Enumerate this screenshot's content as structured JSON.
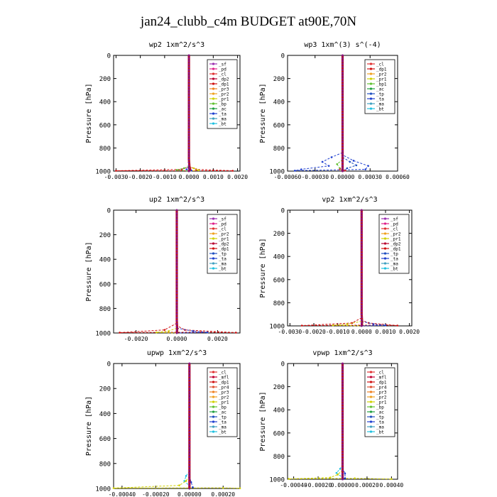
{
  "figure": {
    "title": "jan24_clubb_c4m  BUDGET at90E,70N"
  },
  "chart_data": [
    {
      "type": "line",
      "title": "wp2  1xm^2/s^3",
      "ylabel": "Pressure [hPa]",
      "ylim": [
        1000,
        0
      ],
      "yticks": [
        0,
        200,
        400,
        600,
        800,
        1000
      ],
      "xlim": [
        -0.0031,
        0.0021
      ],
      "xticks": [
        "-0.0030",
        "-0.0020",
        "-0.0010",
        "0.0000",
        "0.0010",
        "0.0020"
      ],
      "xtick_values": [
        -0.003,
        -0.002,
        -0.001,
        0,
        0.001,
        0.002
      ],
      "legend_position": "top-right",
      "legend": [
        "_sf",
        "_pd",
        "_cl",
        "_dp2",
        "_dp1",
        "_pr3",
        "_pr2",
        "_pr1",
        "_bp",
        "_ac",
        "_ta",
        "_ma",
        "_bt"
      ],
      "profile": [
        [
          0,
          0
        ],
        [
          0,
          900
        ],
        [
          2e-05,
          960
        ],
        [
          5e-05,
          985
        ],
        [
          0,
          1000
        ]
      ],
      "series": [
        {
          "name": "_dp1",
          "values": [
            [
              0,
              0
            ],
            [
              0,
              960
            ],
            [
              -0.0003,
              985
            ],
            [
              -0.003,
              997
            ],
            [
              0.0018,
              997
            ],
            [
              0.0003,
              985
            ],
            [
              0,
              960
            ]
          ]
        },
        {
          "name": "_pr1",
          "values": [
            [
              0,
              960
            ],
            [
              0.0002,
              975
            ],
            [
              0.0004,
              992
            ],
            [
              0,
              1000
            ]
          ]
        },
        {
          "name": "_bp",
          "values": [
            [
              0,
              960
            ],
            [
              -0.0002,
              975
            ],
            [
              -0.0005,
              990
            ],
            [
              0,
              1000
            ]
          ]
        },
        {
          "name": "_ta",
          "values": [
            [
              0,
              960
            ],
            [
              -0.0001,
              985
            ],
            [
              0.0001,
              995
            ],
            [
              0,
              1000
            ]
          ]
        }
      ]
    },
    {
      "type": "line",
      "title": "wp3  1xm^(3) s^(-4)",
      "ylabel": "Pressure [hPa]",
      "ylim": [
        1000,
        0
      ],
      "yticks": [
        0,
        200,
        400,
        600,
        800,
        1000
      ],
      "xlim": [
        -0.0006,
        0.0006
      ],
      "xticks": [
        "-0.00060",
        "-0.00030",
        "0.00000",
        "0.00030",
        "0.00060"
      ],
      "xtick_values": [
        -0.0006,
        -0.0003,
        0,
        0.0003,
        0.0006
      ],
      "legend_position": "top-right",
      "legend": [
        "_cl",
        "_dp1",
        "_pr2",
        "_pr1",
        "_bp1",
        "_ac",
        "_tp",
        "_ta",
        "_ma",
        "_bt"
      ],
      "profile": [
        [
          0,
          0
        ],
        [
          0,
          850
        ],
        [
          0,
          1000
        ]
      ],
      "series": [
        {
          "name": "_ta",
          "values": [
            [
              0,
              840
            ],
            [
              -0.00012,
              880
            ],
            [
              -0.00022,
              920
            ],
            [
              -0.00015,
              955
            ],
            [
              -0.00045,
              985
            ],
            [
              -0.00052,
              996
            ],
            [
              0.00025,
              985
            ],
            [
              0.00028,
              955
            ],
            [
              0.00012,
              910
            ],
            [
              0,
              860
            ]
          ]
        },
        {
          "name": "_tp",
          "values": [
            [
              0,
              880
            ],
            [
              8e-05,
              920
            ],
            [
              0.00015,
              950
            ],
            [
              5e-05,
              975
            ],
            [
              0,
              1000
            ]
          ]
        },
        {
          "name": "_bp1",
          "values": [
            [
              0,
              900
            ],
            [
              -6e-05,
              940
            ],
            [
              -3e-05,
              975
            ],
            [
              0,
              1000
            ]
          ]
        },
        {
          "name": "_cl",
          "values": [
            [
              0,
              0
            ],
            [
              0,
              960
            ],
            [
              -3e-05,
              985
            ],
            [
              3e-05,
              995
            ],
            [
              0,
              1000
            ]
          ]
        }
      ]
    },
    {
      "type": "line",
      "title": "up2  1xm^2/s^3",
      "ylabel": "Pressure [hPa]",
      "ylim": [
        1000,
        0
      ],
      "yticks": [
        0,
        200,
        400,
        600,
        800,
        1000
      ],
      "xlim": [
        -0.0031,
        0.0031
      ],
      "xticks": [
        "-0.0020",
        "0.0000",
        "0.0020"
      ],
      "xtick_values": [
        -0.002,
        0,
        0.002
      ],
      "legend_position": "top-right",
      "legend": [
        "_sf",
        "_pd",
        "_cl",
        "_pr2",
        "_pr1",
        "_dp2",
        "_dp1",
        "_tp",
        "_ta",
        "_ma",
        "_bt"
      ],
      "profile": [
        [
          0,
          0
        ],
        [
          0,
          900
        ],
        [
          2e-05,
          970
        ],
        [
          0,
          1000
        ]
      ],
      "series": [
        {
          "name": "_dp1",
          "values": [
            [
              0,
              920
            ],
            [
              -0.0006,
              975
            ],
            [
              -0.0028,
              997
            ],
            [
              0.0012,
              993
            ],
            [
              0.0029,
              997
            ],
            [
              0.0004,
              975
            ],
            [
              0,
              940
            ]
          ]
        },
        {
          "name": "_ta",
          "values": [
            [
              0,
              960
            ],
            [
              0.0008,
              985
            ],
            [
              0.0015,
              995
            ],
            [
              0,
              1000
            ]
          ]
        },
        {
          "name": "_pr1",
          "values": [
            [
              0,
              960
            ],
            [
              -0.0004,
              985
            ],
            [
              -0.001,
              995
            ],
            [
              0,
              1000
            ]
          ]
        }
      ]
    },
    {
      "type": "line",
      "title": "vp2  1xm^2/s^3",
      "ylabel": "Pressure [hPa]",
      "ylim": [
        1000,
        0
      ],
      "yticks": [
        0,
        200,
        400,
        600,
        800,
        1000
      ],
      "xlim": [
        -0.0031,
        0.0021
      ],
      "xticks": [
        "-0.0030",
        "-0.0020",
        "-0.0010",
        "0.0000",
        "0.0010",
        "0.0020"
      ],
      "xtick_values": [
        -0.003,
        -0.002,
        -0.001,
        0,
        0.001,
        0.002
      ],
      "legend_position": "top-right",
      "legend": [
        "_sf",
        "_pd",
        "_cl",
        "_pr2",
        "_pr1",
        "_dp2",
        "_dp1",
        "_tp",
        "_ta",
        "_ma",
        "_bt"
      ],
      "profile": [
        [
          0,
          0
        ],
        [
          0,
          900
        ],
        [
          2e-05,
          970
        ],
        [
          0,
          1000
        ]
      ],
      "series": [
        {
          "name": "_dp1",
          "values": [
            [
              0,
              930
            ],
            [
              -0.0004,
              975
            ],
            [
              -0.0025,
              997
            ],
            [
              0.0008,
              993
            ],
            [
              0.0015,
              997
            ],
            [
              0.0003,
              975
            ],
            [
              0,
              950
            ]
          ]
        },
        {
          "name": "_ta",
          "values": [
            [
              0,
              960
            ],
            [
              0.0005,
              985
            ],
            [
              0.001,
              995
            ],
            [
              0,
              1000
            ]
          ]
        },
        {
          "name": "_pr1",
          "values": [
            [
              0,
              960
            ],
            [
              -0.0006,
              985
            ],
            [
              -0.0012,
              995
            ],
            [
              0,
              1000
            ]
          ]
        }
      ]
    },
    {
      "type": "line",
      "title": "upwp  1xm^2/s^3",
      "ylabel": "Pressure [hPa]",
      "ylim": [
        1000,
        0
      ],
      "yticks": [
        0,
        200,
        400,
        600,
        800,
        1000
      ],
      "xlim": [
        -0.00045,
        0.0003
      ],
      "xticks": [
        "-0.00040",
        "-0.00020",
        "0.00000",
        "0.00020"
      ],
      "xtick_values": [
        -0.0004,
        -0.0002,
        0,
        0.0002
      ],
      "legend_position": "top-right",
      "legend": [
        "_cl",
        "_mfl",
        "_dp1",
        "_pr4",
        "_pr3",
        "_pr2",
        "_pr1",
        "_bp",
        "_ac",
        "_tp",
        "_ta",
        "_ma",
        "_bt"
      ],
      "profile": [
        [
          0,
          0
        ],
        [
          0,
          850
        ],
        [
          0,
          1000
        ]
      ],
      "series": [
        {
          "name": "_bt",
          "values": [
            [
              0,
              860
            ],
            [
              -2e-05,
              900
            ],
            [
              -3e-05,
              940
            ],
            [
              0,
              980
            ],
            [
              0,
              1000
            ]
          ]
        },
        {
          "name": "_pr1",
          "values": [
            [
              0,
              900
            ],
            [
              -2e-05,
              940
            ],
            [
              -6e-05,
              975
            ],
            [
              -0.00045,
              997
            ],
            [
              0.0002,
              995
            ],
            [
              0.0003,
              998
            ]
          ]
        },
        {
          "name": "_ta",
          "values": [
            [
              0,
              900
            ],
            [
              1e-05,
              950
            ],
            [
              2e-05,
              990
            ],
            [
              0,
              1000
            ]
          ]
        }
      ]
    },
    {
      "type": "line",
      "title": "vpwp  1xm^2/s^3",
      "ylabel": "Pressure [hPa]",
      "ylim": [
        1000,
        0
      ],
      "yticks": [
        0,
        200,
        400,
        600,
        800,
        1000
      ],
      "xlim": [
        -0.00045,
        0.00045
      ],
      "xticks": [
        "-0.00040",
        "-0.00020",
        "0.00000",
        "0.00020",
        "0.00040"
      ],
      "xtick_values": [
        -0.0004,
        -0.0002,
        0,
        0.0002,
        0.0004
      ],
      "legend_position": "top-right",
      "legend": [
        "_cl",
        "_mfl",
        "_dp1",
        "_pr4",
        "_pr3",
        "_pr2",
        "_pr1",
        "_bp",
        "_ac",
        "_tp",
        "_ta",
        "_ma",
        "_bt"
      ],
      "profile": [
        [
          0,
          0
        ],
        [
          0,
          850
        ],
        [
          0,
          1000
        ]
      ],
      "series": [
        {
          "name": "_bt",
          "values": [
            [
              0,
              870
            ],
            [
              -2e-05,
              910
            ],
            [
              -5e-05,
              945
            ],
            [
              0,
              985
            ],
            [
              0,
              1000
            ]
          ]
        },
        {
          "name": "_pr1",
          "values": [
            [
              0,
              920
            ],
            [
              -4e-05,
              960
            ],
            [
              -0.0001,
              985
            ],
            [
              -0.00044,
              997
            ],
            [
              0.0001,
              992
            ],
            [
              0.0004,
              998
            ]
          ]
        },
        {
          "name": "_ta",
          "values": [
            [
              0,
              900
            ],
            [
              2e-05,
              950
            ],
            [
              2e-05,
              990
            ],
            [
              0,
              1000
            ]
          ]
        }
      ]
    }
  ],
  "legend_colors": {
    "_sf": "#9b30b0",
    "_pd": "#e0208a",
    "_cl": "#e03030",
    "_mfl": "#c00030",
    "_dp2": "#b80030",
    "_dp1": "#d01010",
    "_pr4": "#e05030",
    "_pr3": "#f08020",
    "_pr2": "#f0a020",
    "_pr1": "#d0d000",
    "_bp": "#60c030",
    "_bp1": "#60c030",
    "_ac": "#20a040",
    "_tp": "#2050c0",
    "_ta": "#2040d0",
    "_ma": "#40a0c0",
    "_bt": "#20c0e0"
  },
  "profile_colors": [
    "#7a0a6a",
    "#c01010",
    "#8a1080"
  ]
}
